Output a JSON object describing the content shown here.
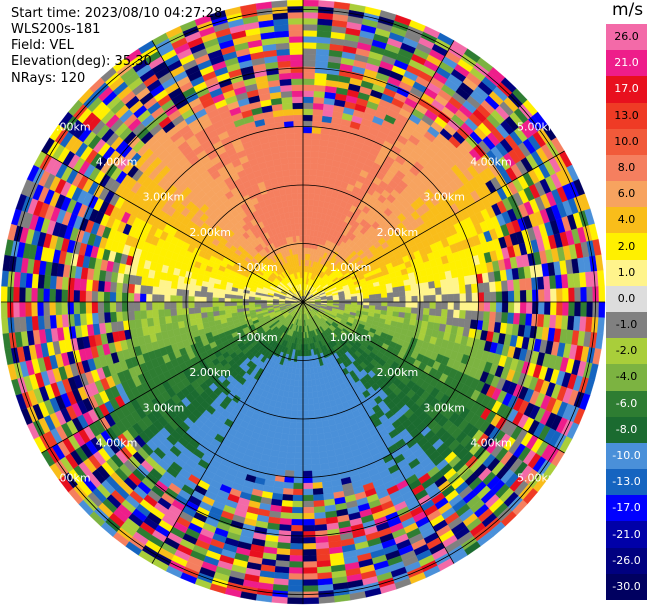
{
  "header": {
    "start_time": "Start time: 2023/08/10 04:27:28",
    "instrument": "WLS200s-181",
    "field": "Field: VEL",
    "elevation": "Elevation(deg): 35.30",
    "nrays": "NRays: 120"
  },
  "colorbar": {
    "unit": "m/s",
    "labels": [
      "26.0",
      "21.0",
      "17.0",
      "13.0",
      "10.0",
      "8.0",
      "6.0",
      "4.0",
      "2.0",
      "1.0",
      "0.0",
      "-1.0",
      "-2.0",
      "-4.0",
      "-6.0",
      "-8.0",
      "-10.0",
      "-13.0",
      "-17.0",
      "-21.0",
      "-26.0",
      "-30.0"
    ],
    "colors": [
      "#f36aa8",
      "#ee1d8a",
      "#e8101e",
      "#ef3b25",
      "#f15a3a",
      "#f57f5f",
      "#f7a35f",
      "#f9bd1a",
      "#fff000",
      "#fff48c",
      "#dddddd",
      "#808080",
      "#a9ce3a",
      "#7cb341",
      "#2e7d32",
      "#1b6b30",
      "#4a90d9",
      "#1564c0",
      "#0000ff",
      "#0000a8",
      "#000080",
      "#000060"
    ]
  },
  "ring_labels": [
    "1.00km",
    "2.00km",
    "3.00km",
    "4.00km",
    "5.00km"
  ]
}
